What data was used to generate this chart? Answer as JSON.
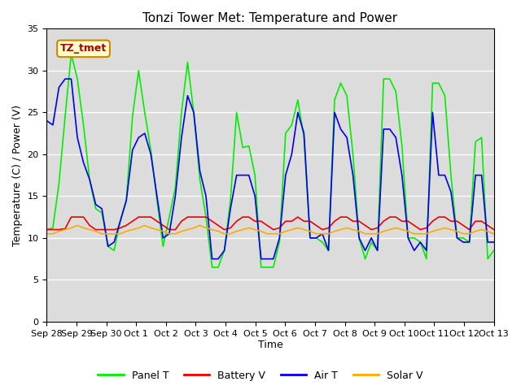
{
  "title": "Tonzi Tower Met: Temperature and Power",
  "xlabel": "Time",
  "ylabel": "Temperature (C) / Power (V)",
  "ylim": [
    0,
    35
  ],
  "yticks": [
    0,
    5,
    10,
    15,
    20,
    25,
    30,
    35
  ],
  "bg_color": "#dcdcdc",
  "fig_color": "#ffffff",
  "legend_label": "TZ_tmet",
  "legend_entries": [
    "Panel T",
    "Battery V",
    "Air T",
    "Solar V"
  ],
  "legend_colors": [
    "#00ee00",
    "#ee0000",
    "#0000ee",
    "#ffaa00"
  ],
  "x_tick_labels": [
    "Sep 28",
    "Sep 29",
    "Sep 30",
    "Oct 1",
    "Oct 2",
    "Oct 3",
    "Oct 4",
    "Oct 5",
    "Oct 6",
    "Oct 7",
    "Oct 8",
    "Oct 9",
    "Oct 10",
    "Oct 11",
    "Oct 12",
    "Oct 13"
  ],
  "panel_T": [
    11.0,
    11.2,
    16.5,
    24.5,
    32.0,
    29.0,
    23.5,
    17.0,
    13.5,
    13.0,
    9.0,
    8.5,
    12.0,
    14.5,
    24.5,
    30.0,
    25.0,
    20.5,
    14.5,
    9.0,
    12.5,
    16.0,
    25.0,
    31.0,
    25.0,
    17.0,
    12.5,
    6.5,
    6.5,
    8.5,
    14.5,
    25.0,
    20.8,
    21.0,
    17.5,
    6.5,
    6.5,
    6.5,
    9.5,
    22.5,
    23.5,
    26.5,
    22.0,
    10.0,
    10.0,
    9.5,
    8.5,
    26.5,
    28.5,
    27.0,
    20.0,
    10.0,
    7.5,
    9.5,
    8.5,
    29.0,
    29.0,
    27.5,
    21.0,
    10.0,
    10.0,
    9.5,
    7.5,
    28.5,
    28.5,
    27.0,
    17.5,
    10.0,
    10.0,
    9.5,
    21.5,
    22.0,
    7.5,
    8.5
  ],
  "battery_V": [
    11.0,
    11.0,
    11.0,
    11.1,
    12.5,
    12.5,
    12.5,
    11.5,
    11.0,
    11.0,
    11.0,
    11.0,
    11.2,
    11.5,
    12.0,
    12.5,
    12.5,
    12.5,
    12.0,
    11.5,
    11.0,
    11.0,
    12.0,
    12.5,
    12.5,
    12.5,
    12.5,
    12.0,
    11.5,
    11.0,
    11.2,
    12.0,
    12.5,
    12.5,
    12.0,
    12.0,
    11.5,
    11.0,
    11.2,
    12.0,
    12.0,
    12.5,
    12.0,
    12.0,
    11.5,
    11.0,
    11.2,
    12.0,
    12.5,
    12.5,
    12.0,
    12.0,
    11.5,
    11.0,
    11.2,
    12.0,
    12.5,
    12.5,
    12.0,
    12.0,
    11.5,
    11.0,
    11.2,
    12.0,
    12.5,
    12.5,
    12.0,
    12.0,
    11.5,
    11.0,
    12.0,
    12.0,
    11.5,
    11.0
  ],
  "air_T": [
    24.0,
    23.5,
    28.0,
    29.0,
    29.0,
    22.0,
    19.0,
    17.0,
    14.0,
    13.5,
    9.0,
    9.5,
    12.0,
    14.5,
    20.5,
    22.0,
    22.5,
    20.0,
    15.0,
    10.0,
    10.5,
    15.0,
    22.0,
    27.0,
    25.0,
    18.0,
    15.0,
    7.5,
    7.5,
    8.5,
    13.5,
    17.5,
    17.5,
    17.5,
    15.0,
    7.5,
    7.5,
    7.5,
    10.0,
    17.5,
    20.0,
    25.0,
    22.5,
    10.0,
    10.0,
    10.5,
    8.5,
    25.0,
    23.0,
    22.0,
    17.5,
    10.0,
    8.5,
    10.0,
    8.5,
    23.0,
    23.0,
    22.0,
    17.5,
    10.0,
    8.5,
    9.5,
    8.5,
    25.0,
    17.5,
    17.5,
    15.5,
    10.0,
    9.5,
    9.5,
    17.5,
    17.5,
    9.5,
    9.5
  ],
  "solar_V": [
    10.5,
    10.5,
    10.8,
    11.0,
    11.2,
    11.5,
    11.2,
    11.0,
    10.8,
    10.5,
    10.5,
    10.5,
    10.5,
    10.8,
    11.0,
    11.2,
    11.5,
    11.2,
    11.0,
    10.8,
    10.5,
    10.5,
    10.8,
    11.0,
    11.2,
    11.5,
    11.2,
    11.0,
    10.8,
    10.5,
    10.5,
    10.8,
    11.0,
    11.2,
    11.0,
    10.8,
    10.5,
    10.5,
    10.5,
    10.8,
    11.0,
    11.2,
    11.0,
    10.8,
    10.5,
    10.5,
    10.5,
    10.8,
    11.0,
    11.2,
    11.0,
    10.8,
    10.5,
    10.5,
    10.5,
    10.8,
    11.0,
    11.2,
    11.0,
    10.8,
    10.5,
    10.5,
    10.5,
    10.8,
    11.0,
    11.2,
    11.0,
    10.8,
    10.5,
    10.5,
    10.8,
    11.0,
    10.8,
    10.5
  ]
}
